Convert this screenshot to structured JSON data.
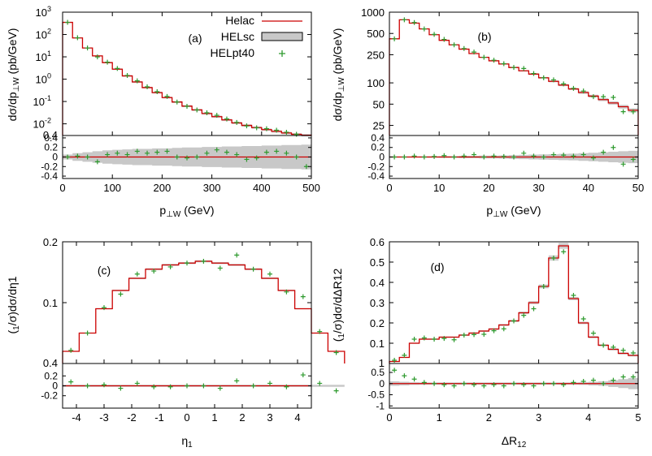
{
  "legend": {
    "helac": "Helac",
    "helsc": "HELsc",
    "helpt40": "HELpt40"
  },
  "colors": {
    "helac": "#cc0000",
    "helsc_band": "#c8c8c8",
    "helpt40": "#2e9a2e"
  },
  "chart_data": [
    {
      "id": "a",
      "type": "line",
      "panel_label": "(a)",
      "xlabel": "p⊥W (GeV)",
      "ylabel": "dσ/dp⊥W (pb/GeV)",
      "yscale": "log",
      "xlim": [
        0,
        500
      ],
      "ylim": [
        0.003,
        1000
      ],
      "xticks": [
        0,
        100,
        200,
        300,
        400,
        500
      ],
      "yticks_exp": [
        -2,
        -1,
        0,
        1,
        2,
        3
      ],
      "bin_width": 20,
      "helac": [
        350,
        70,
        25,
        11,
        5.5,
        2.8,
        1.4,
        0.75,
        0.42,
        0.25,
        0.15,
        0.095,
        0.062,
        0.042,
        0.029,
        0.021,
        0.015,
        0.011,
        0.0085,
        0.0068,
        0.0055,
        0.0046,
        0.0039,
        0.0034,
        0.0031
      ],
      "ratio_ylim": [
        -0.45,
        0.45
      ],
      "ratio_yticks": [
        -0.4,
        -0.2,
        0,
        0.2,
        0.4
      ],
      "ratio_ytick_labels": [
        "-0.4",
        "-0.2",
        "0",
        "0.2",
        "0.4"
      ],
      "top_tick_label": "0.4",
      "ratio_band": [
        0.05,
        0.08,
        0.1,
        0.12,
        0.14,
        0.15,
        0.16,
        0.17,
        0.17,
        0.18,
        0.18,
        0.19,
        0.2,
        0.2,
        0.21,
        0.21,
        0.22,
        0.22,
        0.23,
        0.23,
        0.24,
        0.24,
        0.25,
        0.25,
        0.26
      ],
      "helpt40_ratio": [
        0.0,
        0.02,
        0.0,
        -0.1,
        0.05,
        0.08,
        0.05,
        0.12,
        0.08,
        0.1,
        0.12,
        0.0,
        -0.02,
        0.0,
        0.08,
        0.15,
        0.1,
        0.05,
        -0.05,
        -0.02,
        0.1,
        0.12,
        0.08,
        0.0,
        -0.2
      ]
    },
    {
      "id": "b",
      "type": "line",
      "panel_label": "(b)",
      "xlabel": "p⊥W (GeV)",
      "ylabel": "dσ/dp⊥W (pb/GeV)",
      "yscale": "log",
      "xlim": [
        0,
        50
      ],
      "ylim": [
        18,
        1000
      ],
      "xticks": [
        0,
        10,
        20,
        30,
        40,
        50
      ],
      "yticks": [
        25,
        50,
        100,
        250,
        500,
        1000
      ],
      "bin_width": 2,
      "helac": [
        420,
        780,
        700,
        580,
        480,
        400,
        345,
        300,
        260,
        230,
        205,
        185,
        165,
        148,
        133,
        118,
        105,
        93,
        82,
        73,
        65,
        58,
        52,
        46,
        41
      ],
      "ratio_ylim": [
        -0.45,
        0.45
      ],
      "ratio_yticks": [
        -0.4,
        -0.2,
        0,
        0.2,
        0.4
      ],
      "ratio_ytick_labels": [
        "-0.4",
        "-0.2",
        "0",
        "0.2",
        "0.4"
      ],
      "top_tick_label": "",
      "ratio_band": [
        0.01,
        0.01,
        0.01,
        0.015,
        0.015,
        0.02,
        0.02,
        0.025,
        0.025,
        0.03,
        0.03,
        0.035,
        0.04,
        0.045,
        0.05,
        0.055,
        0.06,
        0.065,
        0.07,
        0.08,
        0.09,
        0.1,
        0.11,
        0.12,
        0.13
      ],
      "helpt40_ratio": [
        0.0,
        0.0,
        0.02,
        0.0,
        0.01,
        0.03,
        0.0,
        0.02,
        0.05,
        0.0,
        0.02,
        0.01,
        0.0,
        0.08,
        0.02,
        0.0,
        0.05,
        0.04,
        0.02,
        0.05,
        -0.02,
        0.1,
        0.2,
        -0.15,
        -0.05
      ]
    },
    {
      "id": "c",
      "type": "line",
      "panel_label": "(c)",
      "xlabel": "η1",
      "ylabel": "(1/σ)dσ/dη1",
      "yscale": "linear",
      "xlim": [
        -4.5,
        4.5
      ],
      "ylim": [
        0.0,
        0.2
      ],
      "xticks": [
        -4,
        -3,
        -2,
        -1,
        0,
        1,
        2,
        3,
        4
      ],
      "yticks": [
        0.1,
        0.2
      ],
      "bin_width": 0.6,
      "bin_start": -4.5,
      "helac": [
        0.02,
        0.05,
        0.09,
        0.12,
        0.14,
        0.155,
        0.162,
        0.165,
        0.168,
        0.165,
        0.162,
        0.155,
        0.14,
        0.12,
        0.09,
        0.05,
        0.02
      ],
      "ratio_ylim": [
        -0.45,
        0.45
      ],
      "ratio_yticks": [
        -0.2,
        0,
        0.2
      ],
      "ratio_ytick_labels": [
        "-0.2",
        "0",
        "0.2"
      ],
      "top_tick_label": "0.4",
      "ratio_band": [
        0.02,
        0.02,
        0.02,
        0.02,
        0.02,
        0.02,
        0.02,
        0.02,
        0.02,
        0.02,
        0.02,
        0.02,
        0.02,
        0.02,
        0.02,
        0.02,
        0.02
      ],
      "helpt40_ratio": [
        0.08,
        0.0,
        0.02,
        -0.05,
        0.05,
        -0.02,
        -0.02,
        0.0,
        0.0,
        -0.05,
        0.1,
        0.0,
        0.05,
        -0.02,
        0.22,
        0.05,
        -0.1
      ]
    },
    {
      "id": "d",
      "type": "line",
      "panel_label": "(d)",
      "xlabel": "ΔR12",
      "ylabel": "(1/σ)dσ/dΔR12",
      "yscale": "linear",
      "xlim": [
        0,
        5
      ],
      "ylim": [
        0.0,
        0.6
      ],
      "xticks": [
        0,
        1,
        2,
        3,
        4,
        5
      ],
      "yticks": [
        0.1,
        0.2,
        0.3,
        0.4,
        0.5,
        0.6
      ],
      "bin_width": 0.2,
      "helac": [
        0.01,
        0.03,
        0.1,
        0.12,
        0.12,
        0.13,
        0.13,
        0.14,
        0.15,
        0.16,
        0.17,
        0.19,
        0.21,
        0.25,
        0.3,
        0.38,
        0.52,
        0.58,
        0.32,
        0.2,
        0.13,
        0.09,
        0.07,
        0.05,
        0.04
      ],
      "ratio_ylim": [
        -1.1,
        0.9
      ],
      "ratio_yticks": [
        -1,
        -0.5,
        0,
        0.5
      ],
      "ratio_ytick_labels": [
        "-1",
        "-0.5",
        "0",
        "0.5"
      ],
      "top_tick_label": "1",
      "ratio_band": [
        0.1,
        0.08,
        0.06,
        0.05,
        0.05,
        0.05,
        0.05,
        0.05,
        0.05,
        0.05,
        0.05,
        0.05,
        0.05,
        0.05,
        0.05,
        0.05,
        0.05,
        0.05,
        0.05,
        0.06,
        0.08,
        0.1,
        0.15,
        0.2,
        0.25
      ],
      "helpt40_ratio": [
        0.6,
        0.35,
        0.2,
        0.05,
        0.0,
        -0.05,
        -0.1,
        0.0,
        -0.05,
        -0.1,
        -0.05,
        -0.1,
        0.0,
        -0.05,
        -0.1,
        0.0,
        0.0,
        -0.05,
        0.05,
        0.1,
        0.15,
        0.0,
        0.15,
        0.3,
        0.3
      ]
    }
  ]
}
